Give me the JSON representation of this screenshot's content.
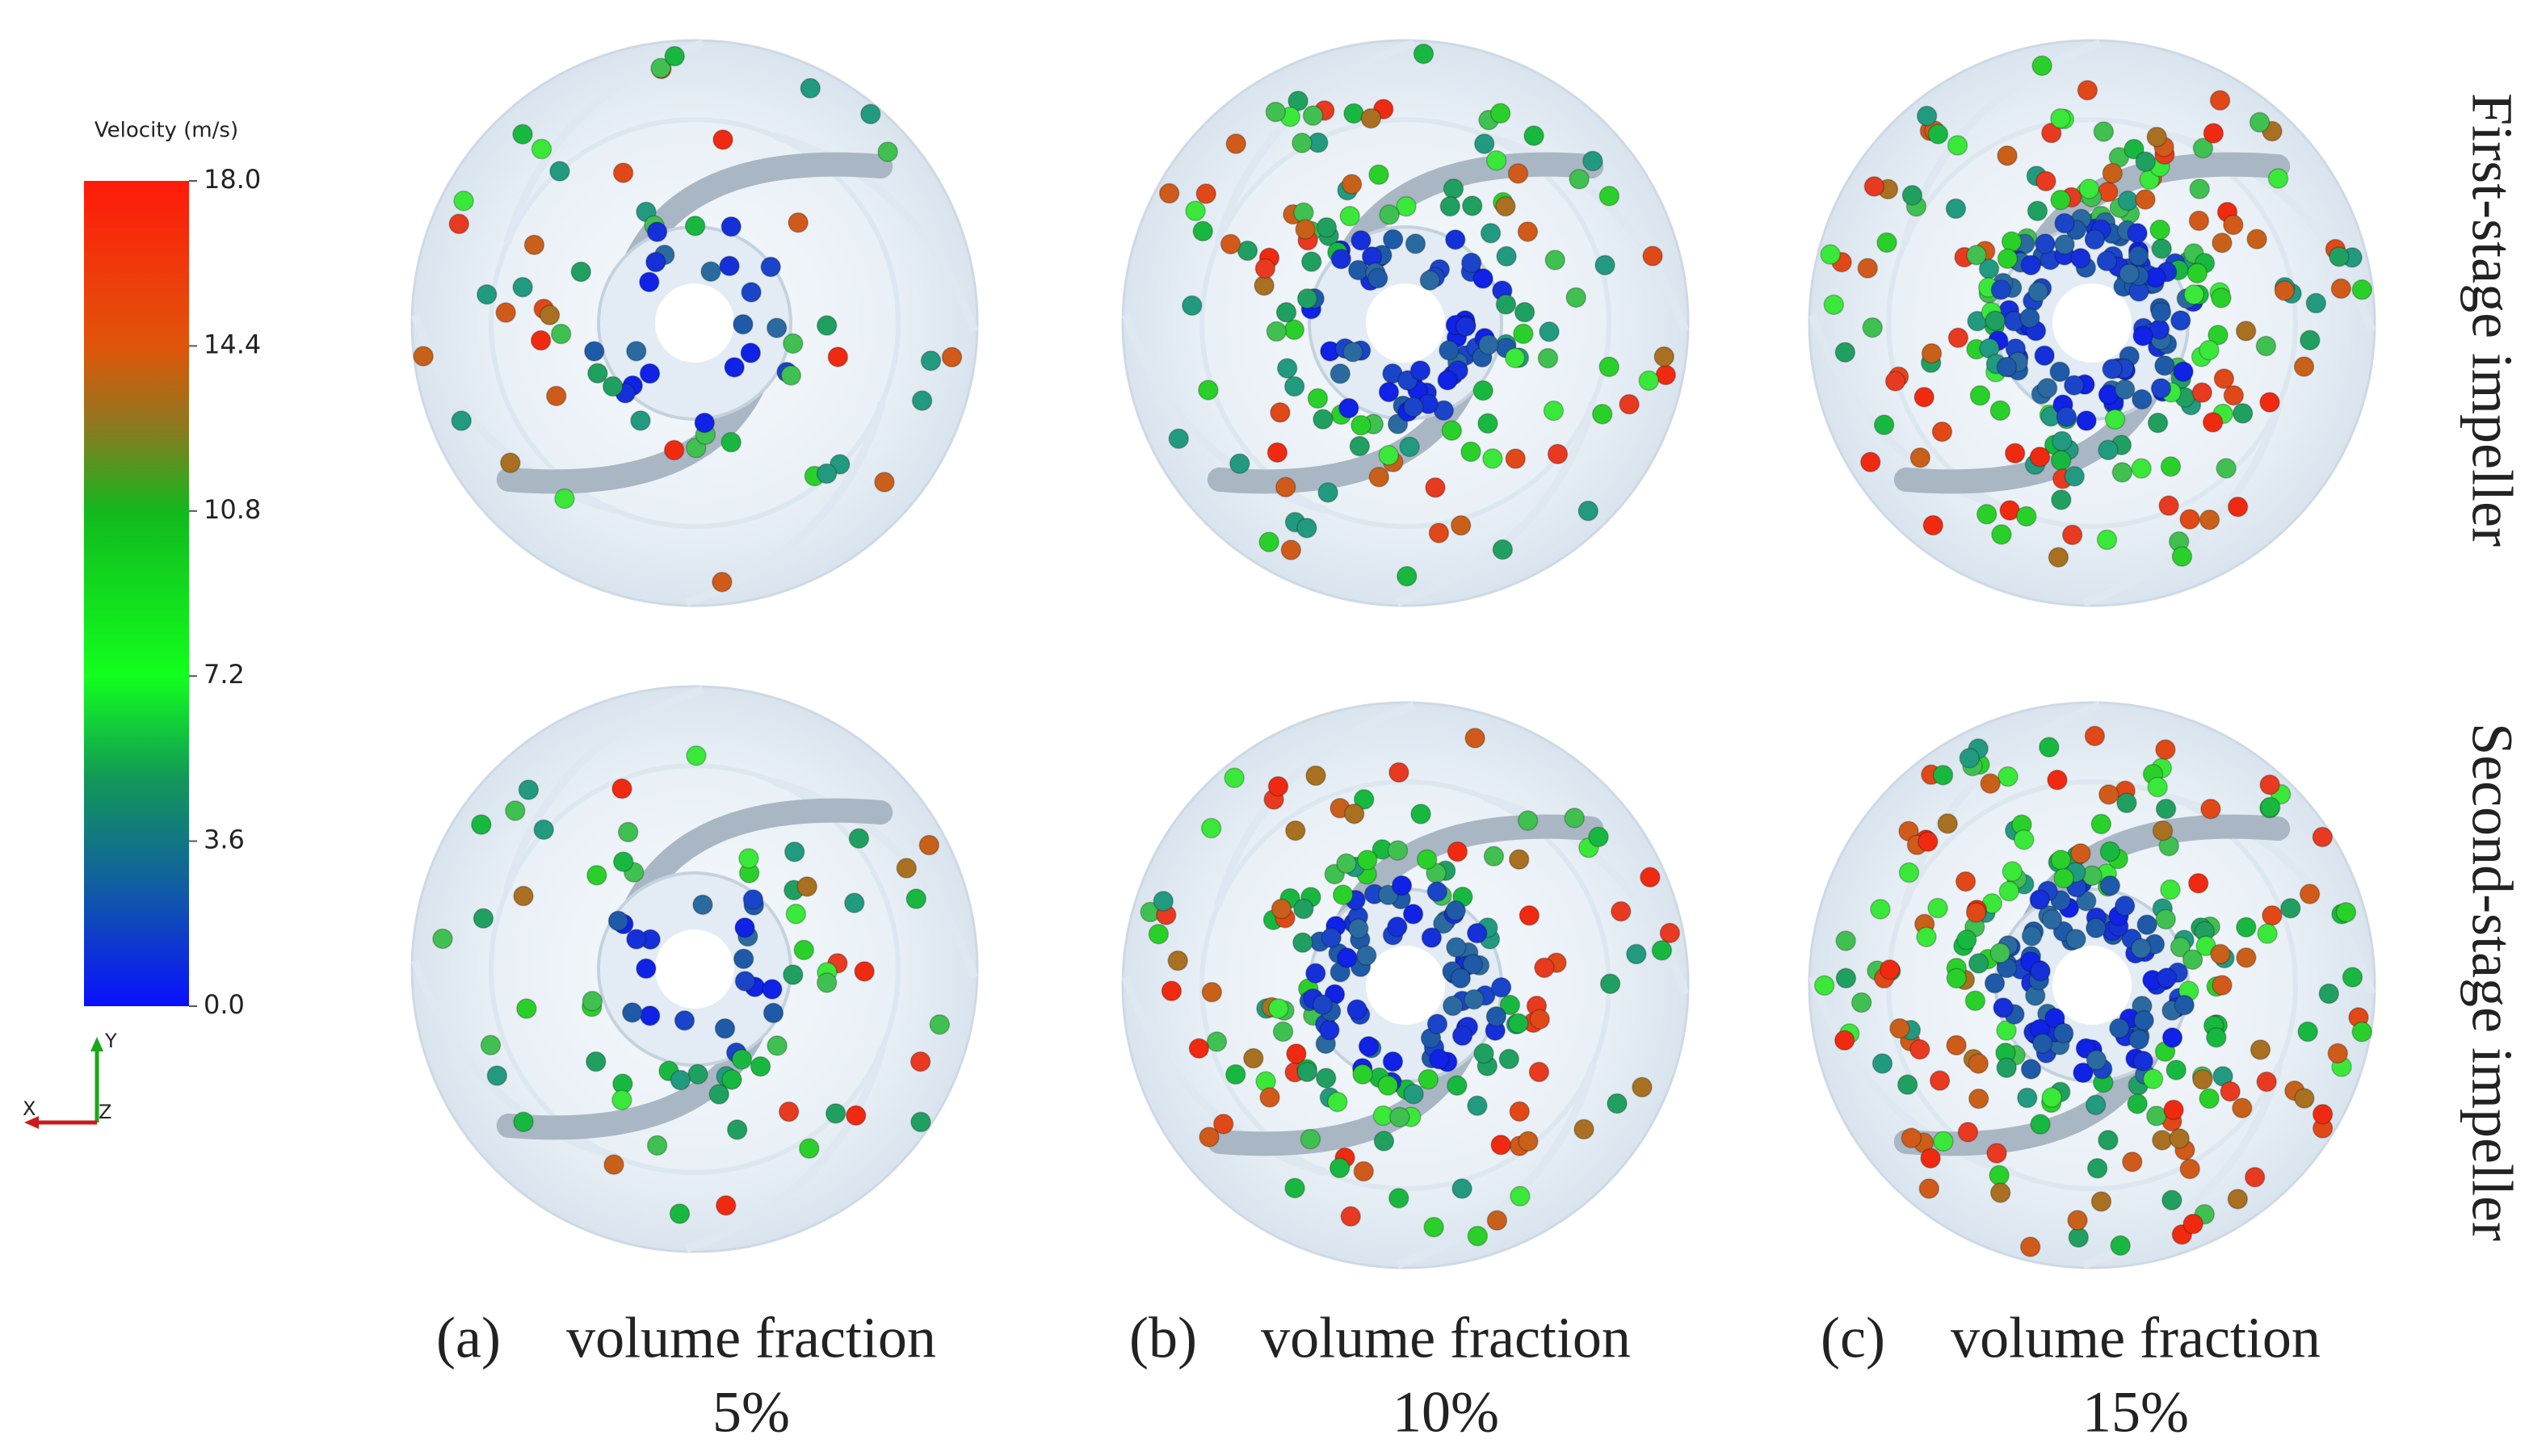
{
  "colorbar": {
    "title": "Velocity (m/s)",
    "ticks": [
      {
        "value": 18,
        "label": "18.0"
      },
      {
        "value": 14.4,
        "label": "14.4"
      },
      {
        "value": 10.8,
        "label": "10.8"
      },
      {
        "value": 7.2,
        "label": "7.2"
      },
      {
        "value": 3.6,
        "label": "3.6"
      },
      {
        "value": 0,
        "label": "0.0"
      }
    ]
  },
  "axes": {
    "y": "Y",
    "x": "X",
    "z": "Z"
  },
  "rows": [
    "First-stage impeller",
    "Second-stage impeller"
  ],
  "panels": [
    {
      "label": "(a)",
      "caption": "volume fraction",
      "fraction": "5%"
    },
    {
      "label": "(b)",
      "caption": "volume fraction",
      "fraction": "10%"
    },
    {
      "label": "(c)",
      "caption": "volume fraction",
      "fraction": "15%"
    }
  ]
}
